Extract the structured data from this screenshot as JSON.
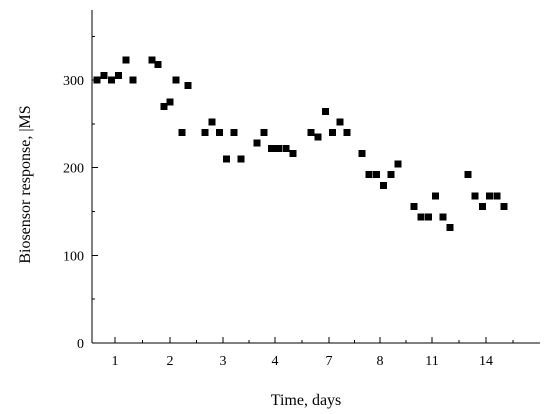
{
  "chart_data": {
    "type": "scatter",
    "title": "",
    "xlabel": "Time, days",
    "ylabel": "Biosensor response, |MS",
    "x_tick_labels": [
      "1",
      "2",
      "3",
      "4",
      "7",
      "8",
      "11",
      "14"
    ],
    "y_ticks": [
      0,
      100,
      200,
      300
    ],
    "ylim": [
      0,
      380
    ],
    "grid": false,
    "legend": "none",
    "marker": "square",
    "color": "#000000",
    "series": [
      {
        "points": [
          {
            "day": "1",
            "y": [
              300,
              305,
              300,
              305,
              323,
              300
            ]
          },
          {
            "day": "2",
            "y": [
              323,
              318,
              270,
              275,
              300,
              240,
              294
            ]
          },
          {
            "day": "3",
            "y": [
              240,
              252,
              240,
              210,
              240,
              210
            ]
          },
          {
            "day": "4",
            "y": [
              228,
              240,
              222,
              222,
              222,
              216
            ]
          },
          {
            "day": "7",
            "y": [
              240,
              235,
              264,
              240,
              252,
              240
            ]
          },
          {
            "day": "8",
            "y": [
              216,
              192,
              192,
              180,
              192,
              204
            ]
          },
          {
            "day": "11",
            "y": [
              156,
              144,
              144,
              168,
              144,
              132
            ]
          },
          {
            "day": "14",
            "y": [
              192,
              168,
              156,
              168,
              168,
              156
            ]
          }
        ]
      }
    ]
  }
}
